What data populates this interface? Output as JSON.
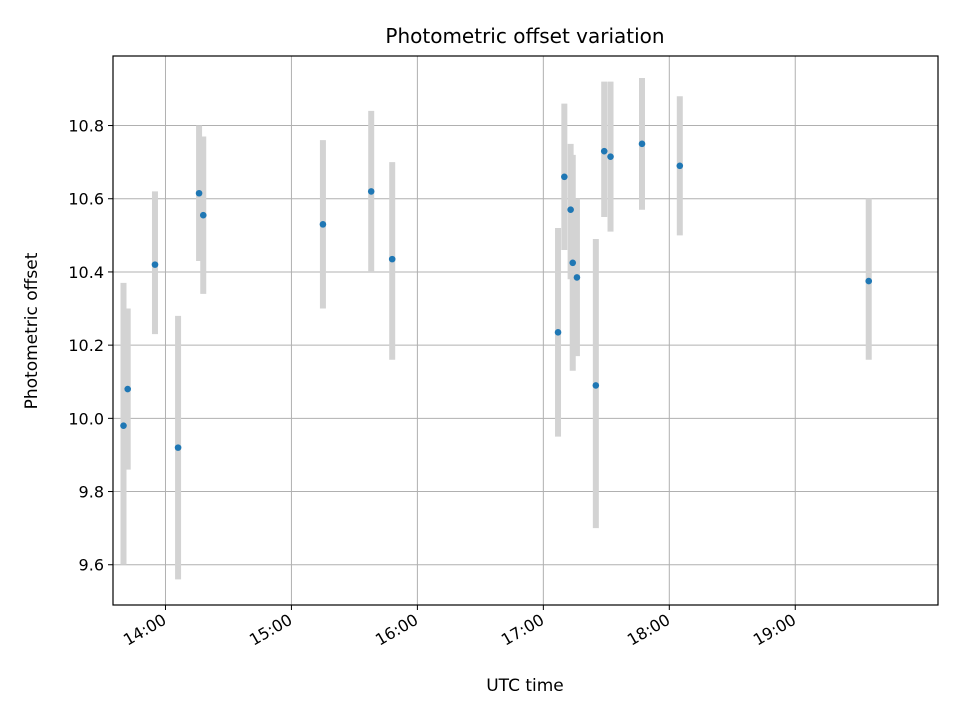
{
  "chart_data": {
    "type": "scatter",
    "title": "Photometric offset variation",
    "xlabel": "UTC time",
    "ylabel": "Photometric offset",
    "x_ticks": [
      "14:00",
      "15:00",
      "16:00",
      "17:00",
      "18:00",
      "19:00"
    ],
    "y_ticks": [
      "9.6",
      "9.8",
      "10.0",
      "10.2",
      "10.4",
      "10.6",
      "10.8"
    ],
    "xlim": [
      "13:35",
      "20:08"
    ],
    "ylim": [
      9.49,
      10.99
    ],
    "grid": true,
    "legend": "none",
    "colors": {
      "points": "#1f77b4",
      "errorbars": "#d3d3d3",
      "grid": "#b0b0b0"
    },
    "points": [
      {
        "x": "13:40",
        "y": 9.98,
        "ylow": 9.6,
        "yhigh": 10.37
      },
      {
        "x": "13:42",
        "y": 10.08,
        "ylow": 9.86,
        "yhigh": 10.3
      },
      {
        "x": "13:55",
        "y": 10.42,
        "ylow": 10.23,
        "yhigh": 10.62
      },
      {
        "x": "14:06",
        "y": 9.92,
        "ylow": 9.56,
        "yhigh": 10.28
      },
      {
        "x": "14:16",
        "y": 10.615,
        "ylow": 10.43,
        "yhigh": 10.8
      },
      {
        "x": "14:18",
        "y": 10.555,
        "ylow": 10.34,
        "yhigh": 10.77
      },
      {
        "x": "15:15",
        "y": 10.53,
        "ylow": 10.3,
        "yhigh": 10.76
      },
      {
        "x": "15:38",
        "y": 10.62,
        "ylow": 10.4,
        "yhigh": 10.84
      },
      {
        "x": "15:48",
        "y": 10.435,
        "ylow": 10.16,
        "yhigh": 10.7
      },
      {
        "x": "17:07",
        "y": 10.235,
        "ylow": 9.95,
        "yhigh": 10.52
      },
      {
        "x": "17:10",
        "y": 10.66,
        "ylow": 10.46,
        "yhigh": 10.86
      },
      {
        "x": "17:13",
        "y": 10.57,
        "ylow": 10.38,
        "yhigh": 10.75
      },
      {
        "x": "17:14",
        "y": 10.425,
        "ylow": 10.13,
        "yhigh": 10.72
      },
      {
        "x": "17:16",
        "y": 10.385,
        "ylow": 10.17,
        "yhigh": 10.6
      },
      {
        "x": "17:25",
        "y": 10.09,
        "ylow": 9.7,
        "yhigh": 10.49
      },
      {
        "x": "17:29",
        "y": 10.73,
        "ylow": 10.55,
        "yhigh": 10.92
      },
      {
        "x": "17:32",
        "y": 10.715,
        "ylow": 10.51,
        "yhigh": 10.92
      },
      {
        "x": "17:47",
        "y": 10.75,
        "ylow": 10.57,
        "yhigh": 10.93
      },
      {
        "x": "18:05",
        "y": 10.69,
        "ylow": 10.5,
        "yhigh": 10.88
      },
      {
        "x": "19:35",
        "y": 10.375,
        "ylow": 10.16,
        "yhigh": 10.6
      }
    ]
  }
}
